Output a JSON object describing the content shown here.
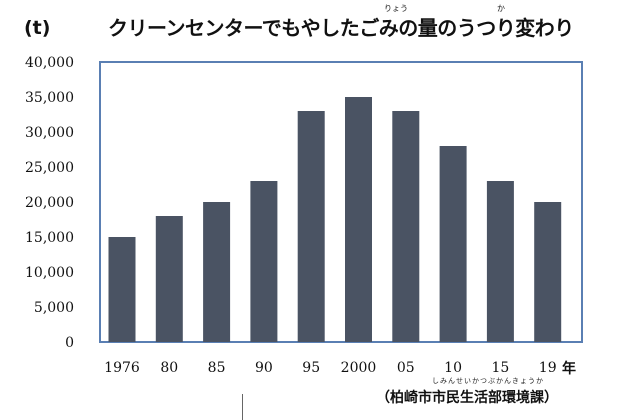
{
  "header": {
    "unit": "(t)",
    "title": "クリーンセンターでもやしたごみの量のうつり変わり",
    "ruby_ryou": "りょう",
    "ruby_ka": "か"
  },
  "footer": {
    "source": "（柏崎市市民生活部環境課）",
    "source_ruby": "しみんせいかつぶかんきょうか",
    "year_unit": "年"
  },
  "colors": {
    "bar": "#4a5363",
    "frame": "#5a7fb3"
  },
  "chart_data": {
    "type": "bar",
    "title": "クリーンセンターでもやしたごみの量のうつり変わり",
    "ylabel": "(t)",
    "xlabel": "年",
    "categories": [
      "1976",
      "80",
      "85",
      "90",
      "95",
      "2000",
      "05",
      "10",
      "15",
      "19"
    ],
    "values": [
      15000,
      18000,
      20000,
      23000,
      33000,
      35000,
      33000,
      28000,
      23000,
      20000
    ],
    "ylim": [
      0,
      40000
    ],
    "yticks": [
      "0",
      "5,000",
      "10,000",
      "15,000",
      "20,000",
      "25,000",
      "30,000",
      "35,000",
      "40,000"
    ],
    "ytick_values": [
      0,
      5000,
      10000,
      15000,
      20000,
      25000,
      30000,
      35000,
      40000
    ],
    "grid": false,
    "legend": "none"
  }
}
